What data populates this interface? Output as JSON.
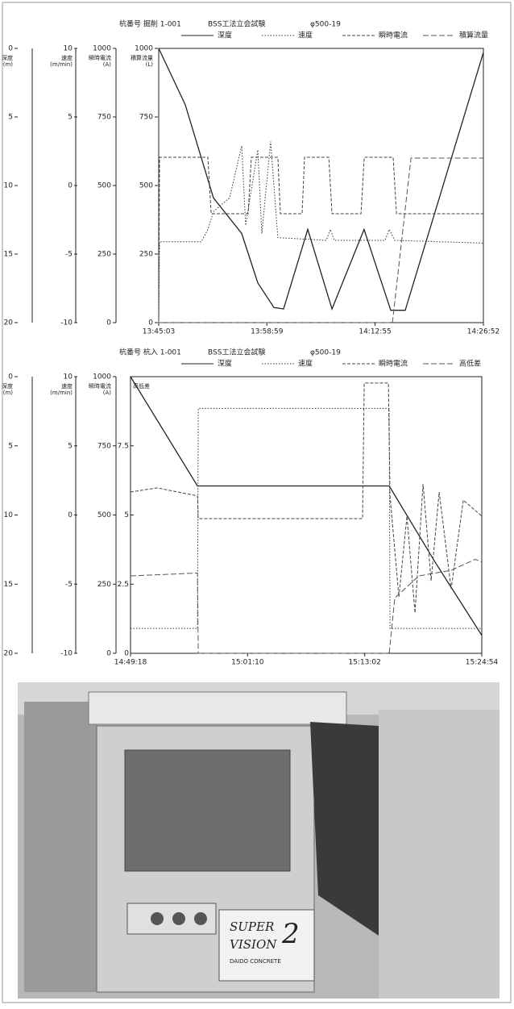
{
  "chart_data": [
    {
      "type": "line",
      "title": "杭番号 掘削 1-001",
      "subtitle": "BSS工法立会試験",
      "annotation": "φ500-19",
      "xlim": [
        49503,
        52012
      ],
      "xticks": [
        {
          "value": 49503,
          "label": "13:45:03"
        },
        {
          "value": 50339,
          "label": "13:58:59"
        },
        {
          "value": 51175,
          "label": "14:12:55"
        },
        {
          "value": 52012,
          "label": "14:26:52"
        }
      ],
      "axes": [
        {
          "label": "深度",
          "unit": "(m)",
          "ylim": [
            20,
            0
          ],
          "yticks": [
            0,
            5,
            10,
            15,
            20
          ]
        },
        {
          "label": "速度",
          "unit": "(m/min)",
          "ylim": [
            -10,
            10
          ],
          "yticks": [
            10,
            5,
            0,
            -5,
            -10
          ]
        },
        {
          "label": "瞬時電流",
          "unit": "(A)",
          "ylim": [
            0,
            1000
          ],
          "yticks": [
            1000,
            750,
            500,
            250,
            0
          ]
        },
        {
          "label": "積算流量",
          "unit": "(L)",
          "ylim": [
            0,
            1000
          ],
          "yticks": [
            1000,
            750,
            500,
            250,
            0
          ]
        }
      ],
      "series": [
        {
          "name": "深度",
          "axis": 0,
          "dash": "solid",
          "color": "#222222",
          "x": [
            49503,
            49708,
            49926,
            50144,
            50269,
            50393,
            50468,
            50655,
            50842,
            51090,
            51296,
            51408,
            52012
          ],
          "values": [
            0,
            4.1,
            10.9,
            13.5,
            17.1,
            18.9,
            19.0,
            13.2,
            19.0,
            13.2,
            19.1,
            19.1,
            0.3
          ]
        },
        {
          "name": "速度",
          "axis": 1,
          "dash": "dotted",
          "color": "#333333",
          "x": [
            49503,
            49509,
            49833,
            49883,
            49926,
            50051,
            50144,
            50175,
            50269,
            50300,
            50368,
            50424,
            50798,
            50829,
            50860,
            51252,
            51284,
            51327,
            52012
          ],
          "values": [
            -10,
            -4.1,
            -4.1,
            -3.2,
            -1.9,
            -0.9,
            2.9,
            -2.9,
            2.6,
            -3.5,
            3.2,
            -3.8,
            -4.0,
            -3.2,
            -4.0,
            -4.0,
            -3.2,
            -4.0,
            -4.2
          ]
        },
        {
          "name": "瞬時電流",
          "axis": 2,
          "dash": "dashed",
          "color": "#444444",
          "x": [
            49503,
            49509,
            49883,
            49908,
            50194,
            50219,
            50424,
            50443,
            50611,
            50630,
            50817,
            50842,
            51066,
            51091,
            51315,
            51340,
            52012
          ],
          "values": [
            0,
            603,
            603,
            397,
            397,
            603,
            603,
            397,
            397,
            603,
            603,
            397,
            397,
            603,
            603,
            397,
            397
          ]
        },
        {
          "name": "積算流量",
          "axis": 3,
          "dash": "longdash",
          "color": "#555555",
          "x": [
            49503,
            51309,
            51452,
            52012
          ],
          "values": [
            0,
            0,
            600,
            600
          ]
        }
      ]
    },
    {
      "type": "line",
      "title": "杭番号 杭入 1-001",
      "subtitle": "BSS工法立会試験",
      "annotation": "φ500-19",
      "xlim": [
        53358,
        55494
      ],
      "xticks": [
        {
          "value": 53358,
          "label": "14:49:18"
        },
        {
          "value": 54070,
          "label": "15:01:10"
        },
        {
          "value": 54782,
          "label": "15:13:02"
        },
        {
          "value": 55494,
          "label": "15:24:54"
        }
      ],
      "axes": [
        {
          "label": "深度",
          "unit": "(m)",
          "ylim": [
            20,
            0
          ],
          "yticks": [
            0,
            5,
            10,
            15,
            20
          ]
        },
        {
          "label": "速度",
          "unit": "(m/min)",
          "ylim": [
            -10,
            10
          ],
          "yticks": [
            10,
            5,
            0,
            -5,
            -10
          ]
        },
        {
          "label": "瞬時電流",
          "unit": "(A)",
          "ylim": [
            0,
            1000
          ],
          "yticks": [
            1000,
            750,
            500,
            250,
            0
          ]
        },
        {
          "label": "高低差",
          "ylim": [
            0,
            10
          ],
          "yticks": [
            10,
            7.5,
            5,
            2.5,
            0
          ]
        }
      ],
      "series": [
        {
          "name": "深度",
          "axis": 0,
          "dash": "solid",
          "color": "#222222",
          "x": [
            53358,
            53765,
            54931,
            55210,
            55494
          ],
          "values": [
            0,
            7.9,
            7.9,
            13.4,
            18.7
          ]
        },
        {
          "name": "速度",
          "axis": 1,
          "dash": "dotted",
          "color": "#333333",
          "x": [
            53358,
            53765,
            53770,
            54931,
            54936,
            55494
          ],
          "values": [
            -8.2,
            -8.2,
            7.7,
            7.7,
            -8.2,
            -8.2
          ]
        },
        {
          "name": "瞬時電流",
          "axis": 2,
          "dash": "dashed",
          "color": "#444444",
          "x": [
            53358,
            53520,
            53765,
            53770,
            54769,
            54779,
            54926,
            54936,
            54990,
            55039,
            55088,
            55137,
            55186,
            55235,
            55308,
            55382,
            55494
          ],
          "values": [
            583,
            598,
            569,
            487,
            487,
            977,
            977,
            569,
            204,
            496,
            146,
            612,
            262,
            583,
            233,
            554,
            496
          ]
        },
        {
          "name": "高低差",
          "axis": 3,
          "dash": "longdash",
          "color": "#555555",
          "x": [
            53358,
            53765,
            53770,
            54931,
            54965,
            55112,
            55308,
            55455,
            55494
          ],
          "values": [
            2.8,
            2.9,
            0,
            0,
            2.0,
            2.8,
            3.0,
            3.4,
            3.3
          ]
        }
      ]
    }
  ],
  "photo": {
    "brand_1": "SUPER",
    "brand_2": "VISION",
    "brand_3": "2",
    "maker": "DAIDO CONCRETE"
  }
}
